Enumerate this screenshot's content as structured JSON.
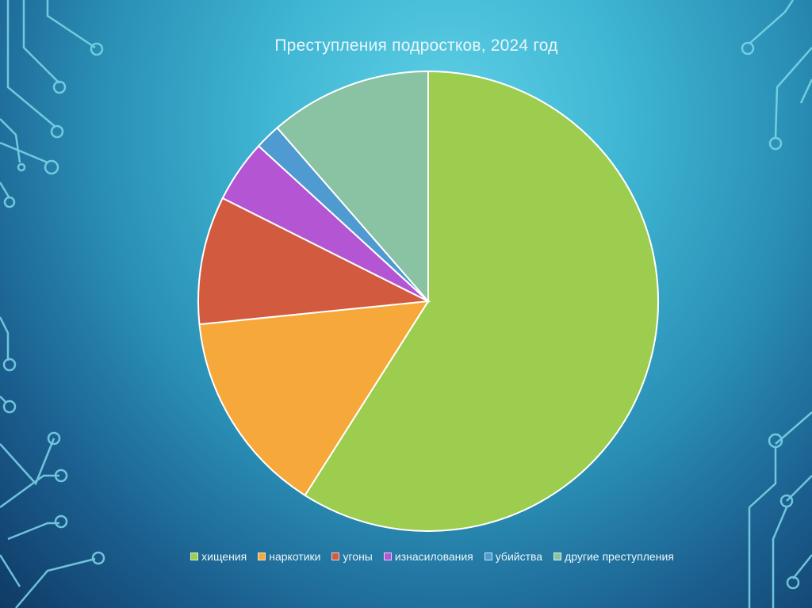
{
  "chart_data": {
    "type": "pie",
    "title": "Преступления подростков, 2024 год",
    "slices": [
      {
        "label": "хищения",
        "value": 59.0,
        "color": "#9ccd4e"
      },
      {
        "label": "наркотики",
        "value": 14.4,
        "color": "#f6a83a"
      },
      {
        "label": "угоны",
        "value": 9.0,
        "color": "#d25a3e"
      },
      {
        "label": "изнасилования",
        "value": 4.4,
        "color": "#b455d4"
      },
      {
        "label": "убийства",
        "value": 1.8,
        "color": "#4f9ad0"
      },
      {
        "label": "другие преступления",
        "value": 11.4,
        "color": "#89c3a3"
      }
    ],
    "legend_position": "bottom",
    "start_angle": "12 o'clock",
    "direction": "clockwise"
  }
}
